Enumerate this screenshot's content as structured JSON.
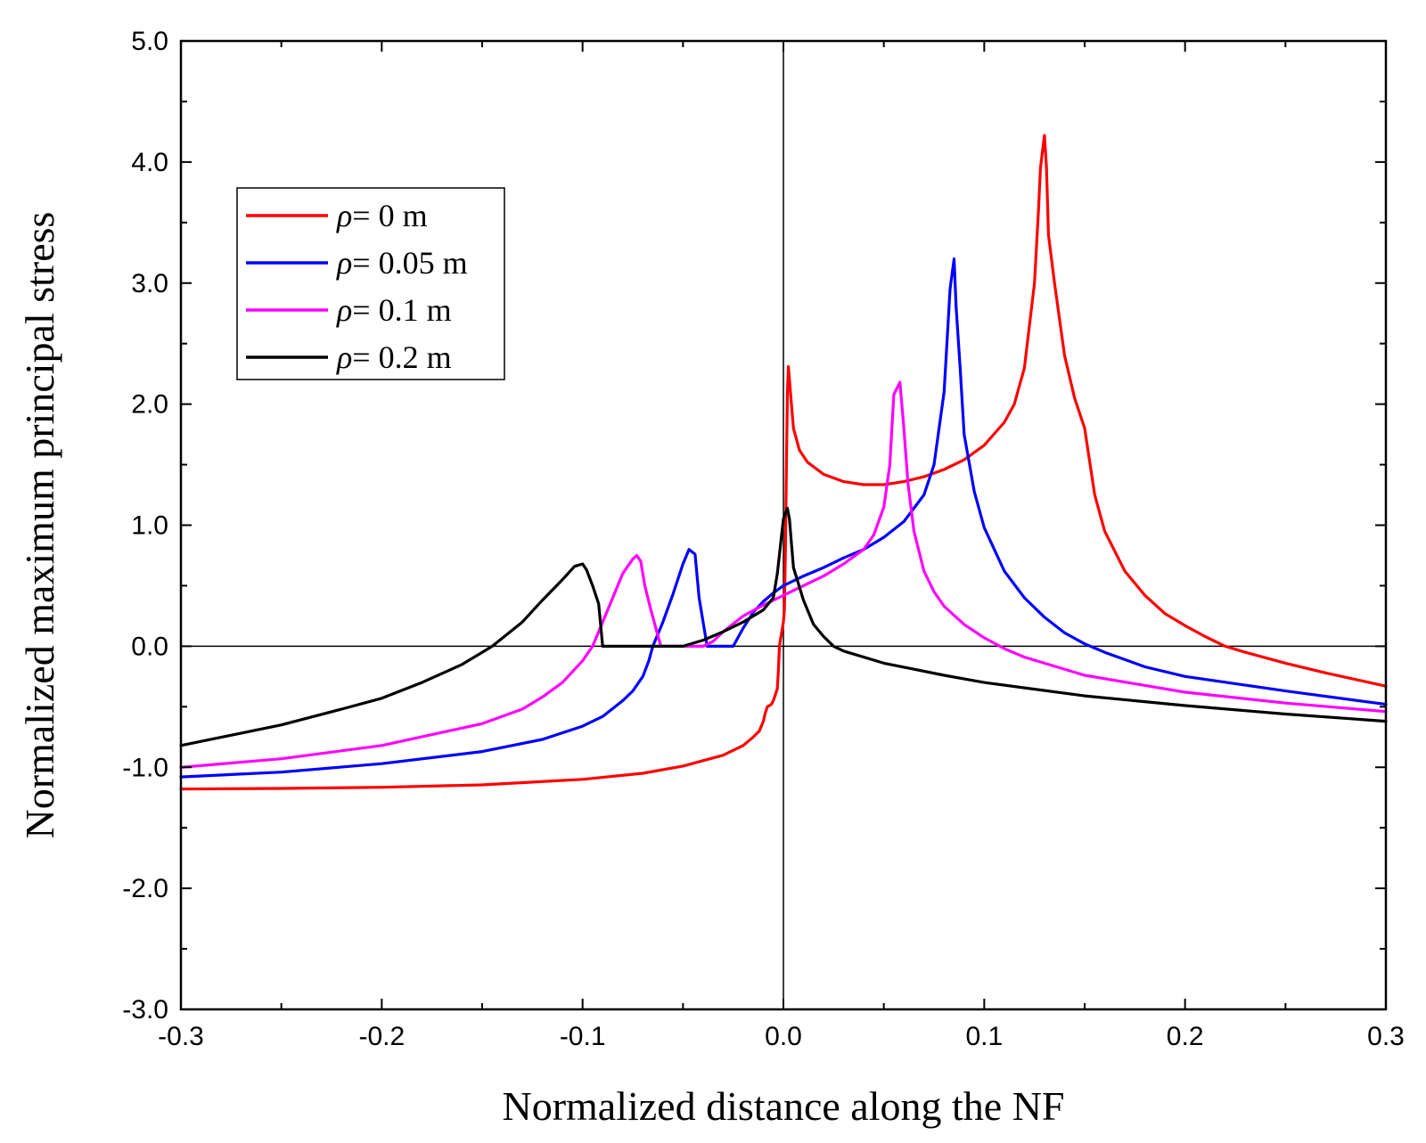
{
  "chart_data": {
    "type": "line",
    "title": "",
    "xlabel": "Normalized distance along the NF",
    "ylabel": "Normalized maximum principal stress",
    "xlim": [
      -0.3,
      0.3
    ],
    "ylim": [
      -3.0,
      5.0
    ],
    "x_ticks": [
      -0.3,
      -0.2,
      -0.1,
      0.0,
      0.1,
      0.2,
      0.3
    ],
    "x_tick_labels": [
      "-0.3",
      "-0.2",
      "-0.1",
      "0.0",
      "0.1",
      "0.2",
      "0.3"
    ],
    "y_ticks": [
      -3.0,
      -2.0,
      -1.0,
      0.0,
      1.0,
      2.0,
      3.0,
      4.0,
      5.0
    ],
    "y_tick_labels": [
      "-3.0",
      "-2.0",
      "-1.0",
      "0.0",
      "1.0",
      "2.0",
      "3.0",
      "4.0",
      "5.0"
    ],
    "reference_lines": {
      "x": 0.0,
      "y": 0.0
    },
    "legend_position": "upper-left",
    "series": [
      {
        "name": "ρ= 0 m",
        "symbol": "ρ",
        "rest": "= 0 m",
        "color": "#ff0000",
        "points": [
          [
            -0.3,
            -1.18
          ],
          [
            -0.25,
            -1.175
          ],
          [
            -0.2,
            -1.165
          ],
          [
            -0.15,
            -1.145
          ],
          [
            -0.1,
            -1.1
          ],
          [
            -0.07,
            -1.05
          ],
          [
            -0.05,
            -0.99
          ],
          [
            -0.03,
            -0.9
          ],
          [
            -0.02,
            -0.82
          ],
          [
            -0.015,
            -0.75
          ],
          [
            -0.012,
            -0.7
          ],
          [
            -0.01,
            -0.62
          ],
          [
            -0.009,
            -0.55
          ],
          [
            -0.008,
            -0.5
          ],
          [
            -0.006,
            -0.48
          ],
          [
            -0.005,
            -0.45
          ],
          [
            -0.004,
            -0.4
          ],
          [
            -0.003,
            -0.35
          ],
          [
            -0.0025,
            -0.2
          ],
          [
            -0.002,
            0.0
          ],
          [
            -0.001,
            0.1
          ],
          [
            0.0,
            0.2
          ],
          [
            0.0005,
            0.3
          ],
          [
            0.001,
            0.8
          ],
          [
            0.0015,
            1.5
          ],
          [
            0.002,
            2.1
          ],
          [
            0.0025,
            2.31
          ],
          [
            0.003,
            2.2
          ],
          [
            0.004,
            2.0
          ],
          [
            0.005,
            1.8
          ],
          [
            0.008,
            1.62
          ],
          [
            0.012,
            1.52
          ],
          [
            0.02,
            1.42
          ],
          [
            0.03,
            1.36
          ],
          [
            0.04,
            1.335
          ],
          [
            0.05,
            1.335
          ],
          [
            0.06,
            1.36
          ],
          [
            0.07,
            1.4
          ],
          [
            0.08,
            1.46
          ],
          [
            0.09,
            1.54
          ],
          [
            0.1,
            1.66
          ],
          [
            0.11,
            1.85
          ],
          [
            0.115,
            2.0
          ],
          [
            0.12,
            2.3
          ],
          [
            0.125,
            3.0
          ],
          [
            0.127,
            3.6
          ],
          [
            0.128,
            3.95
          ],
          [
            0.13,
            4.22
          ],
          [
            0.131,
            3.95
          ],
          [
            0.132,
            3.4
          ],
          [
            0.135,
            3.0
          ],
          [
            0.14,
            2.4
          ],
          [
            0.145,
            2.05
          ],
          [
            0.15,
            1.8
          ],
          [
            0.155,
            1.25
          ],
          [
            0.16,
            0.95
          ],
          [
            0.17,
            0.62
          ],
          [
            0.18,
            0.42
          ],
          [
            0.19,
            0.27
          ],
          [
            0.2,
            0.17
          ],
          [
            0.21,
            0.08
          ],
          [
            0.22,
            0.0
          ],
          [
            0.23,
            -0.05
          ],
          [
            0.25,
            -0.14
          ],
          [
            0.27,
            -0.22
          ],
          [
            0.3,
            -0.33
          ]
        ]
      },
      {
        "name": "ρ= 0.05 m",
        "symbol": "ρ",
        "rest": "= 0.05 m",
        "color": "#0000ff",
        "points": [
          [
            -0.3,
            -1.08
          ],
          [
            -0.25,
            -1.04
          ],
          [
            -0.2,
            -0.97
          ],
          [
            -0.15,
            -0.87
          ],
          [
            -0.12,
            -0.77
          ],
          [
            -0.1,
            -0.66
          ],
          [
            -0.09,
            -0.58
          ],
          [
            -0.08,
            -0.45
          ],
          [
            -0.075,
            -0.37
          ],
          [
            -0.07,
            -0.25
          ],
          [
            -0.067,
            -0.12
          ],
          [
            -0.065,
            0.0
          ],
          [
            -0.06,
            0.2
          ],
          [
            -0.055,
            0.43
          ],
          [
            -0.05,
            0.68
          ],
          [
            -0.047,
            0.8
          ],
          [
            -0.044,
            0.76
          ],
          [
            -0.042,
            0.4
          ],
          [
            -0.04,
            0.2
          ],
          [
            -0.038,
            0.0
          ],
          [
            -0.025,
            0.0
          ],
          [
            -0.02,
            0.15
          ],
          [
            -0.015,
            0.28
          ],
          [
            -0.01,
            0.37
          ],
          [
            -0.005,
            0.44
          ],
          [
            0.0,
            0.5
          ],
          [
            0.01,
            0.58
          ],
          [
            0.02,
            0.65
          ],
          [
            0.03,
            0.73
          ],
          [
            0.04,
            0.8
          ],
          [
            0.05,
            0.9
          ],
          [
            0.06,
            1.03
          ],
          [
            0.07,
            1.25
          ],
          [
            0.075,
            1.5
          ],
          [
            0.08,
            2.1
          ],
          [
            0.083,
            2.95
          ],
          [
            0.085,
            3.2
          ],
          [
            0.086,
            2.8
          ],
          [
            0.088,
            2.3
          ],
          [
            0.09,
            1.75
          ],
          [
            0.095,
            1.28
          ],
          [
            0.1,
            0.98
          ],
          [
            0.11,
            0.62
          ],
          [
            0.12,
            0.4
          ],
          [
            0.13,
            0.24
          ],
          [
            0.14,
            0.11
          ],
          [
            0.15,
            0.02
          ],
          [
            0.16,
            -0.05
          ],
          [
            0.18,
            -0.17
          ],
          [
            0.2,
            -0.25
          ],
          [
            0.25,
            -0.37
          ],
          [
            0.3,
            -0.48
          ]
        ]
      },
      {
        "name": "ρ= 0.1 m",
        "symbol": "ρ",
        "rest": "= 0.1 m",
        "color": "#ff00ff",
        "points": [
          [
            -0.3,
            -1.0
          ],
          [
            -0.25,
            -0.93
          ],
          [
            -0.2,
            -0.82
          ],
          [
            -0.15,
            -0.64
          ],
          [
            -0.13,
            -0.52
          ],
          [
            -0.12,
            -0.42
          ],
          [
            -0.11,
            -0.3
          ],
          [
            -0.1,
            -0.12
          ],
          [
            -0.095,
            0.0
          ],
          [
            -0.09,
            0.2
          ],
          [
            -0.085,
            0.4
          ],
          [
            -0.08,
            0.6
          ],
          [
            -0.075,
            0.72
          ],
          [
            -0.073,
            0.75
          ],
          [
            -0.071,
            0.7
          ],
          [
            -0.069,
            0.5
          ],
          [
            -0.066,
            0.3
          ],
          [
            -0.063,
            0.12
          ],
          [
            -0.061,
            0.0
          ],
          [
            -0.04,
            0.0
          ],
          [
            -0.035,
            0.04
          ],
          [
            -0.03,
            0.12
          ],
          [
            -0.02,
            0.25
          ],
          [
            -0.01,
            0.34
          ],
          [
            0.0,
            0.42
          ],
          [
            0.01,
            0.5
          ],
          [
            0.02,
            0.58
          ],
          [
            0.03,
            0.68
          ],
          [
            0.04,
            0.8
          ],
          [
            0.045,
            0.92
          ],
          [
            0.05,
            1.15
          ],
          [
            0.053,
            1.5
          ],
          [
            0.055,
            2.08
          ],
          [
            0.058,
            2.18
          ],
          [
            0.06,
            1.8
          ],
          [
            0.062,
            1.35
          ],
          [
            0.065,
            0.95
          ],
          [
            0.07,
            0.62
          ],
          [
            0.075,
            0.45
          ],
          [
            0.08,
            0.33
          ],
          [
            0.09,
            0.18
          ],
          [
            0.1,
            0.07
          ],
          [
            0.11,
            -0.02
          ],
          [
            0.12,
            -0.09
          ],
          [
            0.15,
            -0.24
          ],
          [
            0.2,
            -0.38
          ],
          [
            0.25,
            -0.47
          ],
          [
            0.3,
            -0.54
          ]
        ]
      },
      {
        "name": "ρ= 0.2 m",
        "symbol": "ρ",
        "rest": "= 0.2 m",
        "color": "#000000",
        "points": [
          [
            -0.3,
            -0.82
          ],
          [
            -0.25,
            -0.65
          ],
          [
            -0.22,
            -0.52
          ],
          [
            -0.2,
            -0.43
          ],
          [
            -0.18,
            -0.3
          ],
          [
            -0.16,
            -0.15
          ],
          [
            -0.15,
            -0.05
          ],
          [
            -0.145,
            0.0
          ],
          [
            -0.13,
            0.2
          ],
          [
            -0.12,
            0.38
          ],
          [
            -0.11,
            0.55
          ],
          [
            -0.104,
            0.66
          ],
          [
            -0.1,
            0.68
          ],
          [
            -0.098,
            0.63
          ],
          [
            -0.095,
            0.5
          ],
          [
            -0.092,
            0.35
          ],
          [
            -0.09,
            0.0
          ],
          [
            -0.05,
            0.0
          ],
          [
            -0.04,
            0.05
          ],
          [
            -0.03,
            0.12
          ],
          [
            -0.02,
            0.2
          ],
          [
            -0.01,
            0.3
          ],
          [
            -0.005,
            0.4
          ],
          [
            -0.003,
            0.6
          ],
          [
            -0.001,
            0.9
          ],
          [
            0.0,
            1.05
          ],
          [
            0.001,
            1.1
          ],
          [
            0.002,
            1.14
          ],
          [
            0.003,
            1.05
          ],
          [
            0.004,
            0.85
          ],
          [
            0.005,
            0.65
          ],
          [
            0.01,
            0.38
          ],
          [
            0.015,
            0.18
          ],
          [
            0.02,
            0.08
          ],
          [
            0.025,
            0.0
          ],
          [
            0.03,
            -0.04
          ],
          [
            0.05,
            -0.14
          ],
          [
            0.08,
            -0.24
          ],
          [
            0.1,
            -0.3
          ],
          [
            0.15,
            -0.41
          ],
          [
            0.2,
            -0.49
          ],
          [
            0.25,
            -0.56
          ],
          [
            0.3,
            -0.62
          ]
        ]
      }
    ]
  }
}
